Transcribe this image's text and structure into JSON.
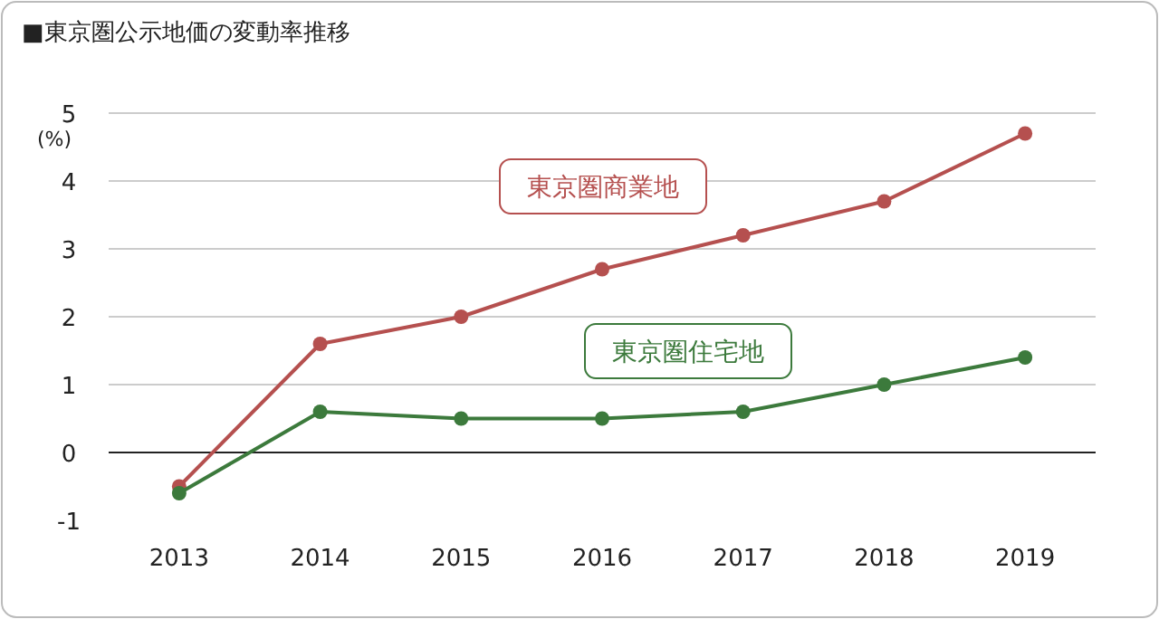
{
  "chart_data": {
    "type": "line",
    "title": "■東京圏公示地価の変動率推移",
    "ylabel": "(%)",
    "categories": [
      "2013",
      "2014",
      "2015",
      "2016",
      "2017",
      "2018",
      "2019"
    ],
    "series": [
      {
        "name": "東京圏商業地",
        "color": "#b5504f",
        "values": [
          -0.5,
          1.6,
          2.0,
          2.7,
          3.2,
          3.7,
          4.7
        ]
      },
      {
        "name": "東京圏住宅地",
        "color": "#3c7a3c",
        "values": [
          -0.6,
          0.6,
          0.5,
          0.5,
          0.6,
          1.0,
          1.4
        ]
      }
    ],
    "ylim": [
      -1,
      5
    ],
    "yticks": [
      -1,
      0,
      1,
      2,
      3,
      4,
      5
    ],
    "grid": "y",
    "marker": "circle",
    "line_style": "solid"
  }
}
